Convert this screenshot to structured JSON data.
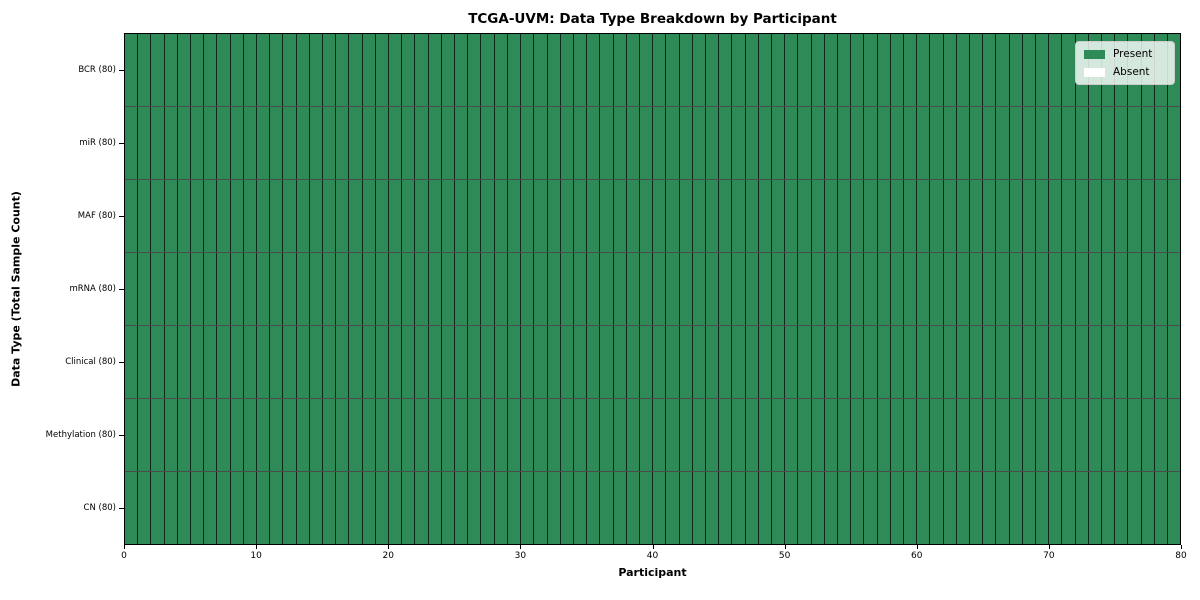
{
  "title": "TCGA-UVM: Data Type Breakdown by Participant",
  "x_axis": {
    "label": "Participant",
    "ticks": [
      "0",
      "10",
      "20",
      "30",
      "40",
      "50",
      "60",
      "70",
      "80"
    ],
    "min": 0,
    "max": 80
  },
  "y_axis": {
    "label": "Data Type (Total Sample Count)",
    "ticks": [
      "BCR (80)",
      "miR (80)",
      "MAF (80)",
      "mRNA (80)",
      "Clinical (80)",
      "Methylation (80)",
      "CN (80)"
    ]
  },
  "legend": {
    "items": [
      {
        "label": "Present",
        "color": "#2e8b57"
      },
      {
        "label": "Absent",
        "color": "#ffffff"
      }
    ]
  },
  "colors": {
    "present": "#2e8b57",
    "absent": "#ffffff",
    "cell_border": "#1a1a1a",
    "axis": "#000000"
  },
  "chart_data": {
    "type": "heatmap",
    "title": "TCGA-UVM: Data Type Breakdown by Participant",
    "xlabel": "Participant",
    "ylabel": "Data Type (Total Sample Count)",
    "x_range": [
      0,
      80
    ],
    "n_participants": 80,
    "categories": [
      "BCR (80)",
      "miR (80)",
      "MAF (80)",
      "mRNA (80)",
      "Clinical (80)",
      "Methylation (80)",
      "CN (80)"
    ],
    "series": [
      {
        "name": "BCR",
        "total_samples": 80,
        "present_count": 80,
        "absent_count": 0
      },
      {
        "name": "miR",
        "total_samples": 80,
        "present_count": 80,
        "absent_count": 0
      },
      {
        "name": "MAF",
        "total_samples": 80,
        "present_count": 80,
        "absent_count": 0
      },
      {
        "name": "mRNA",
        "total_samples": 80,
        "present_count": 80,
        "absent_count": 0
      },
      {
        "name": "Clinical",
        "total_samples": 80,
        "present_count": 80,
        "absent_count": 0
      },
      {
        "name": "Methylation",
        "total_samples": 80,
        "present_count": 80,
        "absent_count": 0
      },
      {
        "name": "CN",
        "total_samples": 80,
        "present_count": 80,
        "absent_count": 0
      }
    ],
    "cell_values": "All 560 cells (80 participants x 7 data types) = 1 (Present); no Absent cells visible",
    "legend_entries": [
      "Present",
      "Absent"
    ],
    "legend_position": "upper right",
    "grid": false
  }
}
